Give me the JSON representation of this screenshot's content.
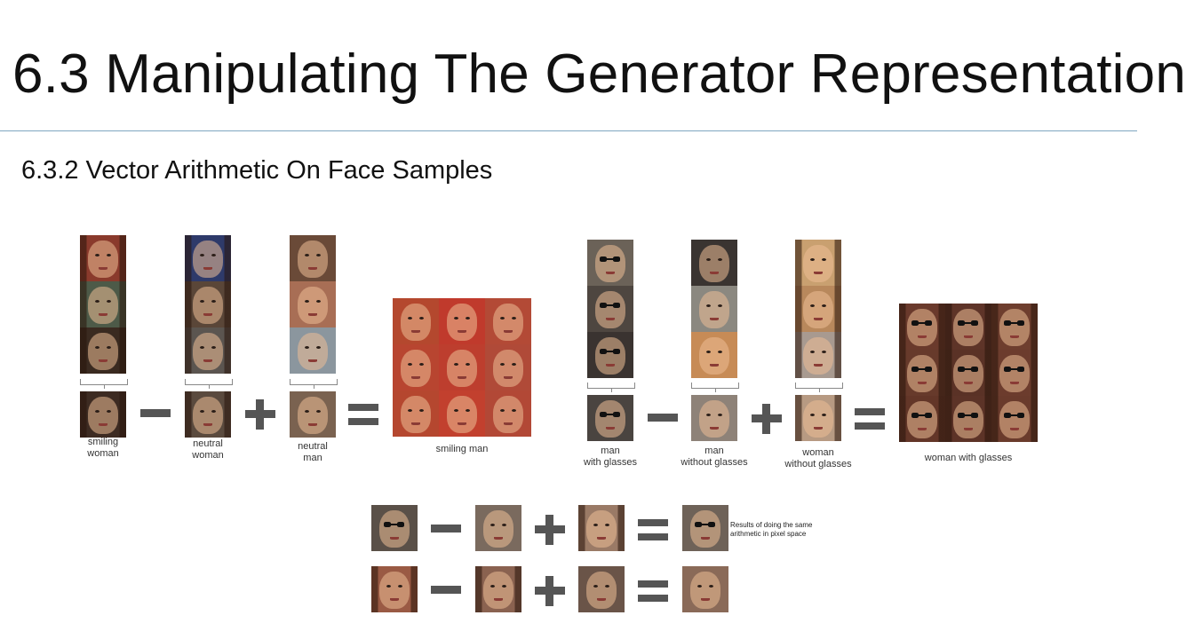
{
  "slide": {
    "title": "6.3 Manipulating The Generator Representation",
    "subtitle": "6.3.2 Vector Arithmetic On Face Samples"
  },
  "figure_left": {
    "labels": {
      "smiling_woman": "smiling\nwoman",
      "neutral_woman": "neutral\nwoman",
      "neutral_man": "neutral\nman",
      "result": "smiling man"
    }
  },
  "figure_right": {
    "labels": {
      "man_glasses": "man\nwith glasses",
      "man_no_glasses": "man\nwithout glasses",
      "woman_no_glasses": "woman\nwithout glasses",
      "result": "woman with glasses"
    }
  },
  "figure_bottom": {
    "note": "Results of doing the same\narithmetic in pixel space"
  },
  "palette": {
    "operator": "#555555",
    "rule": "#7fa6c0"
  }
}
